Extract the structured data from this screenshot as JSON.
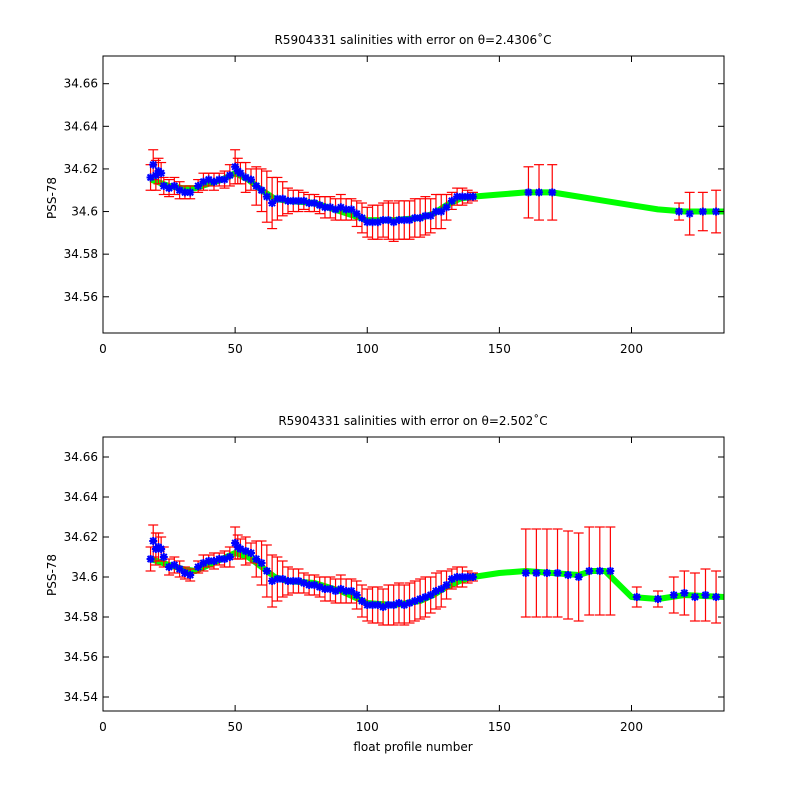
{
  "chart_data": [
    {
      "type": "line",
      "title": "R5904331 salinities with error on θ=2.4306˚C",
      "ylabel": "PSS-78",
      "xlabel": "",
      "xlim": [
        0,
        235
      ],
      "ylim": [
        34.543,
        34.673
      ],
      "xticks": [
        0,
        50,
        100,
        150,
        200
      ],
      "yticks": [
        34.56,
        34.58,
        34.6,
        34.62,
        34.64,
        34.66
      ],
      "ytick_labels": [
        "34.56",
        "34.58",
        "34.6",
        "34.62",
        "34.64",
        "34.66"
      ],
      "grid": false,
      "colors": {
        "fit": "#00ff00",
        "error": "#ff0000",
        "points": "#0000ff"
      },
      "fit_line": {
        "x": [
          18,
          25,
          30,
          35,
          40,
          45,
          50,
          55,
          60,
          65,
          70,
          80,
          90,
          100,
          110,
          120,
          125,
          130,
          135,
          140,
          150,
          160,
          170,
          180,
          190,
          200,
          210,
          220,
          230,
          235
        ],
        "y": [
          34.615,
          34.612,
          34.611,
          34.611,
          34.613,
          34.615,
          34.618,
          34.615,
          34.61,
          34.606,
          34.605,
          34.604,
          34.6,
          34.596,
          34.596,
          34.597,
          34.599,
          34.603,
          34.606,
          34.607,
          34.608,
          34.609,
          34.609,
          34.607,
          34.605,
          34.603,
          34.601,
          34.6,
          34.6,
          34.6
        ]
      },
      "points": {
        "x": [
          18,
          19,
          20,
          21,
          22,
          23,
          25,
          27,
          29,
          31,
          33,
          36,
          38,
          40,
          42,
          44,
          46,
          48,
          50,
          51,
          52,
          54,
          56,
          58,
          60,
          62,
          64,
          66,
          68,
          70,
          72,
          74,
          76,
          78,
          80,
          82,
          84,
          86,
          88,
          90,
          92,
          94,
          96,
          98,
          100,
          102,
          104,
          106,
          108,
          110,
          112,
          114,
          116,
          118,
          120,
          122,
          124,
          126,
          128,
          130,
          132,
          134,
          136,
          138,
          140,
          161,
          165,
          170,
          218,
          222,
          227,
          232
        ],
        "y": [
          34.616,
          34.622,
          34.617,
          34.619,
          34.618,
          34.612,
          34.611,
          34.612,
          34.61,
          34.609,
          34.609,
          34.612,
          34.614,
          34.615,
          34.614,
          34.615,
          34.615,
          34.617,
          34.621,
          34.619,
          34.618,
          34.616,
          34.615,
          34.612,
          34.61,
          34.607,
          34.604,
          34.606,
          34.606,
          34.605,
          34.605,
          34.605,
          34.605,
          34.604,
          34.604,
          34.603,
          34.602,
          34.602,
          34.601,
          34.602,
          34.601,
          34.601,
          34.599,
          34.597,
          34.595,
          34.595,
          34.595,
          34.596,
          34.596,
          34.595,
          34.596,
          34.596,
          34.596,
          34.597,
          34.597,
          34.598,
          34.598,
          34.6,
          34.6,
          34.602,
          34.605,
          34.607,
          34.607,
          34.607,
          34.607,
          34.609,
          34.609,
          34.609,
          34.6,
          34.599,
          34.6,
          34.6
        ]
      },
      "errors": [
        0.006,
        0.007,
        0.007,
        0.006,
        0.005,
        0.004,
        0.004,
        0.004,
        0.004,
        0.003,
        0.003,
        0.003,
        0.004,
        0.003,
        0.004,
        0.003,
        0.004,
        0.005,
        0.008,
        0.006,
        0.005,
        0.007,
        0.005,
        0.009,
        0.01,
        0.012,
        0.012,
        0.01,
        0.008,
        0.006,
        0.005,
        0.005,
        0.004,
        0.004,
        0.004,
        0.004,
        0.005,
        0.005,
        0.005,
        0.006,
        0.005,
        0.005,
        0.006,
        0.007,
        0.007,
        0.008,
        0.008,
        0.008,
        0.009,
        0.009,
        0.009,
        0.009,
        0.009,
        0.009,
        0.009,
        0.009,
        0.008,
        0.008,
        0.008,
        0.006,
        0.004,
        0.004,
        0.004,
        0.003,
        0.002,
        0.012,
        0.013,
        0.013,
        0.004,
        0.01,
        0.009,
        0.01
      ]
    },
    {
      "type": "line",
      "title": "R5904331 salinities with error on θ=2.502˚C",
      "ylabel": "PSS-78",
      "xlabel": "float profile number",
      "xlim": [
        0,
        235
      ],
      "ylim": [
        34.533,
        34.67
      ],
      "xticks": [
        0,
        50,
        100,
        150,
        200
      ],
      "yticks": [
        34.54,
        34.56,
        34.58,
        34.6,
        34.62,
        34.64,
        34.66
      ],
      "ytick_labels": [
        "34.54",
        "34.56",
        "34.58",
        "34.6",
        "34.62",
        "34.64",
        "34.66"
      ],
      "grid": false,
      "colors": {
        "fit": "#00ff00",
        "error": "#ff0000",
        "points": "#0000ff"
      },
      "fit_line": {
        "x": [
          18,
          25,
          30,
          35,
          40,
          45,
          50,
          55,
          60,
          65,
          70,
          80,
          90,
          100,
          110,
          120,
          125,
          130,
          135,
          140,
          150,
          160,
          170,
          180,
          185,
          190,
          200,
          210,
          220,
          235
        ],
        "y": [
          34.609,
          34.606,
          34.604,
          34.603,
          34.606,
          34.609,
          34.612,
          34.61,
          34.605,
          34.6,
          34.598,
          34.597,
          34.593,
          34.587,
          34.586,
          34.588,
          34.591,
          34.595,
          34.598,
          34.6,
          34.602,
          34.603,
          34.602,
          34.601,
          34.603,
          34.603,
          34.59,
          34.589,
          34.591,
          34.59
        ]
      },
      "points": {
        "x": [
          18,
          19,
          20,
          21,
          22,
          23,
          25,
          27,
          29,
          31,
          33,
          36,
          38,
          40,
          42,
          44,
          46,
          48,
          50,
          51,
          52,
          54,
          56,
          58,
          60,
          62,
          64,
          66,
          68,
          70,
          72,
          74,
          76,
          78,
          80,
          82,
          84,
          86,
          88,
          90,
          92,
          94,
          96,
          98,
          100,
          102,
          104,
          106,
          108,
          110,
          112,
          114,
          116,
          118,
          120,
          122,
          124,
          126,
          128,
          130,
          132,
          134,
          136,
          138,
          140,
          160,
          164,
          168,
          172,
          176,
          180,
          184,
          188,
          192,
          202,
          210,
          216,
          220,
          224,
          228,
          232
        ],
        "y": [
          34.609,
          34.618,
          34.614,
          34.615,
          34.614,
          34.61,
          34.605,
          34.606,
          34.604,
          34.602,
          34.601,
          34.605,
          34.607,
          34.608,
          34.608,
          34.609,
          34.609,
          34.61,
          34.617,
          34.615,
          34.614,
          34.613,
          34.612,
          34.609,
          34.607,
          34.603,
          34.598,
          34.599,
          34.599,
          34.598,
          34.598,
          34.598,
          34.597,
          34.596,
          34.596,
          34.595,
          34.594,
          34.594,
          34.593,
          34.594,
          34.593,
          34.593,
          34.591,
          34.588,
          34.586,
          34.586,
          34.586,
          34.585,
          34.586,
          34.586,
          34.587,
          34.586,
          34.587,
          34.588,
          34.589,
          34.59,
          34.591,
          34.593,
          34.594,
          34.596,
          34.599,
          34.6,
          34.6,
          34.6,
          34.6,
          34.602,
          34.602,
          34.602,
          34.602,
          34.601,
          34.6,
          34.603,
          34.603,
          34.603,
          34.59,
          34.589,
          34.591,
          34.592,
          34.59,
          34.591,
          34.59
        ]
      },
      "errors": [
        0.006,
        0.008,
        0.008,
        0.007,
        0.006,
        0.005,
        0.004,
        0.004,
        0.004,
        0.003,
        0.003,
        0.003,
        0.004,
        0.003,
        0.004,
        0.003,
        0.004,
        0.005,
        0.008,
        0.006,
        0.005,
        0.007,
        0.005,
        0.009,
        0.011,
        0.013,
        0.013,
        0.011,
        0.009,
        0.007,
        0.006,
        0.006,
        0.005,
        0.005,
        0.005,
        0.005,
        0.006,
        0.006,
        0.006,
        0.007,
        0.006,
        0.006,
        0.007,
        0.008,
        0.008,
        0.009,
        0.009,
        0.009,
        0.01,
        0.01,
        0.01,
        0.01,
        0.01,
        0.01,
        0.01,
        0.01,
        0.009,
        0.009,
        0.009,
        0.007,
        0.005,
        0.005,
        0.005,
        0.003,
        0.002,
        0.022,
        0.022,
        0.022,
        0.022,
        0.022,
        0.022,
        0.022,
        0.022,
        0.022,
        0.005,
        0.004,
        0.009,
        0.011,
        0.012,
        0.013,
        0.013
      ]
    }
  ]
}
